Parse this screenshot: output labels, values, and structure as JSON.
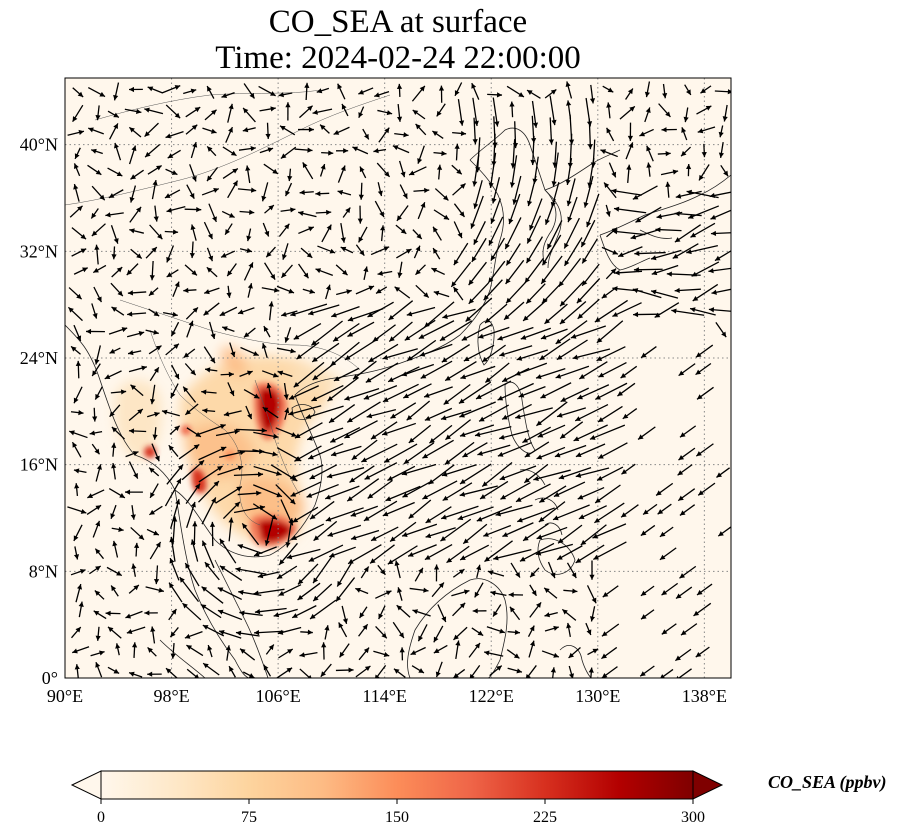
{
  "title": {
    "line1": "CO_SEA at surface",
    "line2": "Time: 2024-02-24 22:00:00"
  },
  "map": {
    "projection": "PlateCarree",
    "lon_range": [
      90,
      140
    ],
    "lat_range": [
      0,
      45
    ],
    "lon_ticks": [
      "90°E",
      "98°E",
      "106°E",
      "114°E",
      "122°E",
      "130°E",
      "138°E"
    ],
    "lat_ticks": [
      "0°",
      "8°N",
      "16°N",
      "24°N",
      "32°N",
      "40°N"
    ],
    "gridlines": "dotted",
    "coastlines": true,
    "wind_vectors": true
  },
  "colorbar": {
    "label": "CO_SEA (ppbv)",
    "colormap": "OrRd",
    "range": [
      0,
      300
    ],
    "extend": "both",
    "ticks": [
      "0",
      "75",
      "150",
      "225",
      "300"
    ],
    "colors": [
      "#fff7ec",
      "#fee8c8",
      "#fdd49e",
      "#fdbb84",
      "#fc8d59",
      "#ef6548",
      "#d7301f",
      "#b30000",
      "#7f0000"
    ]
  }
}
